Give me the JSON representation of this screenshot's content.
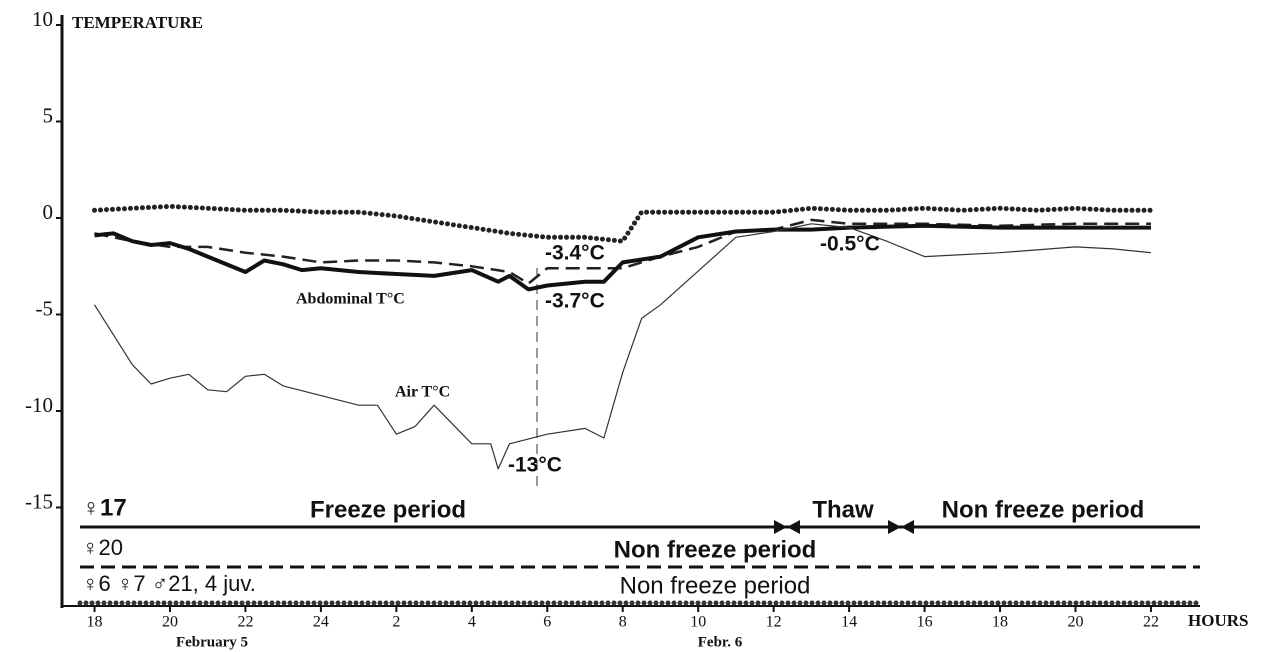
{
  "chart_data": {
    "type": "line",
    "y_label": "TEMPERATURE",
    "x_label": "HOURS",
    "date_labels": [
      "February 5",
      "Febr. 6"
    ],
    "xlim": [
      17.35,
      47.3
    ],
    "ylim": [
      -20,
      10
    ],
    "xticks": [
      18,
      20,
      22,
      24,
      {
        "value": 26,
        "label": "2"
      },
      {
        "value": 28,
        "label": "4"
      },
      {
        "value": 30,
        "label": "6"
      },
      {
        "value": 32,
        "label": "8"
      },
      {
        "value": 34,
        "label": "10"
      },
      {
        "value": 36,
        "label": "12"
      },
      {
        "value": 38,
        "label": "14"
      },
      {
        "value": 40,
        "label": "16"
      },
      {
        "value": 42,
        "label": "18"
      },
      {
        "value": 44,
        "label": "20"
      },
      {
        "value": 46,
        "label": "22"
      }
    ],
    "yticks": [
      10,
      5,
      0,
      -5,
      -10,
      -15
    ],
    "series": [
      {
        "name": "♀6 ♀7 ♂21, 4 juv.",
        "color": "#222",
        "style": "dotted",
        "x": [
          18,
          19,
          20,
          21,
          22,
          23,
          24,
          25,
          26,
          27,
          28,
          29,
          30,
          31,
          32,
          32.5,
          33,
          34,
          35,
          36,
          37,
          38,
          39,
          40,
          41,
          42,
          43,
          44,
          45,
          46
        ],
        "values": [
          0.4,
          0.5,
          0.6,
          0.5,
          0.4,
          0.4,
          0.3,
          0.3,
          0.1,
          -0.2,
          -0.5,
          -0.8,
          -1.0,
          -1.0,
          -1.2,
          0.3,
          0.3,
          0.3,
          0.3,
          0.3,
          0.5,
          0.4,
          0.4,
          0.5,
          0.4,
          0.5,
          0.4,
          0.5,
          0.4,
          0.4
        ]
      },
      {
        "name": "♀20",
        "color": "#222",
        "style": "dashed",
        "x": [
          18,
          19,
          20,
          21,
          22,
          23,
          24,
          25,
          26,
          27,
          28,
          29,
          29.5,
          30,
          31,
          32,
          33,
          34,
          35,
          36,
          37,
          38,
          40,
          42,
          44,
          46
        ],
        "values": [
          -0.8,
          -1.2,
          -1.5,
          -1.5,
          -1.8,
          -2.0,
          -2.3,
          -2.2,
          -2.2,
          -2.3,
          -2.5,
          -2.8,
          -3.4,
          -2.6,
          -2.6,
          -2.6,
          -2.0,
          -1.5,
          -0.7,
          -0.6,
          -0.1,
          -0.3,
          -0.3,
          -0.4,
          -0.3,
          -0.3
        ]
      },
      {
        "name": "♀17",
        "color": "#111",
        "style": "solid",
        "x": [
          18,
          18.5,
          19,
          19.5,
          20,
          20.5,
          21,
          22,
          22.5,
          23,
          23.5,
          24,
          25,
          26,
          27,
          28,
          28.7,
          29,
          29.5,
          30,
          31,
          31.5,
          32,
          33,
          34,
          35,
          36,
          37,
          38,
          40,
          42,
          44,
          46
        ],
        "values": [
          -0.9,
          -0.8,
          -1.2,
          -1.4,
          -1.3,
          -1.6,
          -2.0,
          -2.8,
          -2.2,
          -2.4,
          -2.7,
          -2.6,
          -2.8,
          -2.9,
          -3.0,
          -2.7,
          -3.3,
          -3.0,
          -3.7,
          -3.5,
          -3.3,
          -3.3,
          -2.3,
          -2.0,
          -1.0,
          -0.7,
          -0.6,
          -0.6,
          -0.5,
          -0.4,
          -0.5,
          -0.5,
          -0.5
        ]
      },
      {
        "name": "Air T°C",
        "color": "#333",
        "style": "thin",
        "x": [
          18,
          19,
          19.5,
          20,
          20.5,
          21,
          21.5,
          22,
          22.5,
          23,
          24,
          25,
          25.5,
          26,
          26.5,
          27,
          28,
          28.5,
          28.7,
          29,
          30,
          31,
          31.5,
          32,
          32.5,
          33,
          35,
          36,
          37,
          38,
          39,
          40,
          42,
          44,
          45,
          46
        ],
        "values": [
          -4.5,
          -7.6,
          -8.6,
          -8.3,
          -8.1,
          -8.9,
          -9.0,
          -8.2,
          -8.1,
          -8.7,
          -9.2,
          -9.7,
          -9.7,
          -11.2,
          -10.8,
          -9.7,
          -11.7,
          -11.7,
          -13,
          -11.7,
          -11.2,
          -10.9,
          -11.4,
          -8.0,
          -5.2,
          -4.5,
          -1.0,
          -0.7,
          -0.3,
          -0.5,
          -1.2,
          -2.0,
          -1.8,
          -1.5,
          -1.6,
          -1.8
        ]
      }
    ],
    "annotations": [
      "-3.4°C",
      "-3.7°C",
      "-0.5°C",
      "-13°C",
      "Abdominal T°C"
    ],
    "period_rows": [
      [
        "Freeze period",
        "Thaw",
        "Non freeze period"
      ],
      [
        "Non freeze period"
      ],
      [
        "Non freeze period"
      ]
    ]
  }
}
